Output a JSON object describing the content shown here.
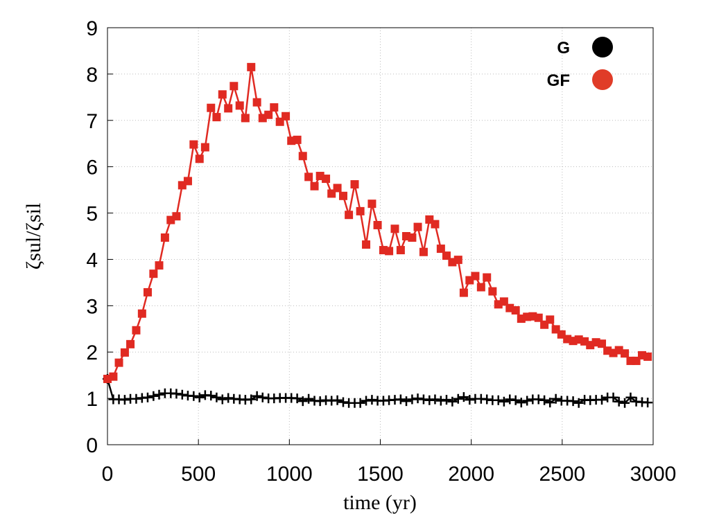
{
  "chart_data": {
    "type": "line",
    "xlabel": "time (yr)",
    "ylabel": "ζsul/ζsil",
    "x": [
      0,
      32,
      63,
      95,
      126,
      158,
      190,
      221,
      253,
      284,
      316,
      348,
      379,
      411,
      442,
      474,
      506,
      537,
      569,
      600,
      632,
      664,
      695,
      727,
      758,
      790,
      822,
      853,
      885,
      916,
      948,
      980,
      1011,
      1043,
      1074,
      1106,
      1138,
      1169,
      1201,
      1232,
      1264,
      1296,
      1327,
      1359,
      1390,
      1422,
      1454,
      1485,
      1517,
      1548,
      1580,
      1612,
      1643,
      1675,
      1706,
      1738,
      1770,
      1801,
      1833,
      1864,
      1896,
      1928,
      1959,
      1991,
      2022,
      2054,
      2086,
      2117,
      2149,
      2180,
      2212,
      2244,
      2275,
      2307,
      2338,
      2370,
      2402,
      2433,
      2465,
      2496,
      2528,
      2560,
      2591,
      2623,
      2654,
      2686,
      2718,
      2749,
      2781,
      2812,
      2844,
      2876,
      2907,
      2939,
      2970
    ],
    "series": [
      {
        "name": "G",
        "color": "#000000",
        "marker": "plus",
        "legend_color": "#000000",
        "values": [
          1.42,
          0.98,
          0.98,
          0.97,
          0.99,
          0.99,
          1.01,
          1.02,
          1.05,
          1.08,
          1.11,
          1.11,
          1.1,
          1.08,
          1.06,
          1.05,
          1.02,
          1.07,
          1.06,
          1.02,
          0.98,
          1.01,
          0.99,
          0.98,
          0.97,
          0.98,
          1.05,
          1.02,
          1.0,
          1.0,
          1.01,
          1.01,
          1.01,
          1.0,
          0.94,
          0.99,
          0.95,
          0.94,
          0.96,
          0.95,
          0.96,
          0.92,
          0.9,
          0.9,
          0.9,
          0.95,
          0.97,
          0.95,
          0.95,
          0.96,
          0.97,
          0.98,
          0.94,
          0.98,
          1.0,
          0.98,
          0.96,
          0.98,
          0.95,
          0.97,
          0.93,
          0.99,
          1.03,
          0.97,
          0.99,
          0.99,
          0.98,
          0.96,
          0.96,
          0.93,
          0.98,
          0.96,
          0.91,
          0.95,
          0.98,
          0.98,
          0.96,
          0.91,
          0.99,
          0.95,
          0.95,
          0.94,
          0.9,
          0.97,
          0.96,
          0.97,
          0.97,
          1.02,
          1.02,
          0.93,
          0.9,
          1.02,
          0.93,
          0.92,
          0.91
        ]
      },
      {
        "name": "GF",
        "color": "#e02a22",
        "marker": "square",
        "legend_color": "#e03c28",
        "values": [
          1.42,
          1.47,
          1.77,
          1.99,
          2.17,
          2.47,
          2.83,
          3.29,
          3.69,
          3.87,
          4.47,
          4.85,
          4.93,
          5.6,
          5.69,
          6.48,
          6.17,
          6.42,
          7.27,
          7.07,
          7.56,
          7.26,
          7.74,
          7.32,
          7.05,
          8.15,
          7.39,
          7.05,
          7.12,
          7.28,
          6.97,
          7.09,
          6.56,
          6.58,
          6.23,
          5.78,
          5.58,
          5.8,
          5.74,
          5.42,
          5.54,
          5.37,
          4.96,
          5.62,
          5.04,
          4.32,
          5.2,
          4.74,
          4.2,
          4.18,
          4.66,
          4.2,
          4.5,
          4.47,
          4.7,
          4.16,
          4.86,
          4.76,
          4.23,
          4.08,
          3.94,
          3.99,
          3.28,
          3.55,
          3.64,
          3.4,
          3.61,
          3.31,
          3.03,
          3.09,
          2.95,
          2.9,
          2.72,
          2.76,
          2.77,
          2.74,
          2.59,
          2.7,
          2.49,
          2.38,
          2.28,
          2.24,
          2.27,
          2.23,
          2.15,
          2.21,
          2.18,
          2.03,
          1.98,
          2.04,
          1.97,
          1.81,
          1.81,
          1.93,
          1.9
        ]
      }
    ],
    "xlim": [
      0,
      3000
    ],
    "xticks": [
      0,
      500,
      1000,
      1500,
      2000,
      2500,
      3000
    ],
    "ylim": [
      0,
      9
    ],
    "yticks": [
      0,
      1,
      2,
      3,
      4,
      5,
      6,
      7,
      8,
      9
    ],
    "grid": true,
    "legend": "upper right"
  }
}
